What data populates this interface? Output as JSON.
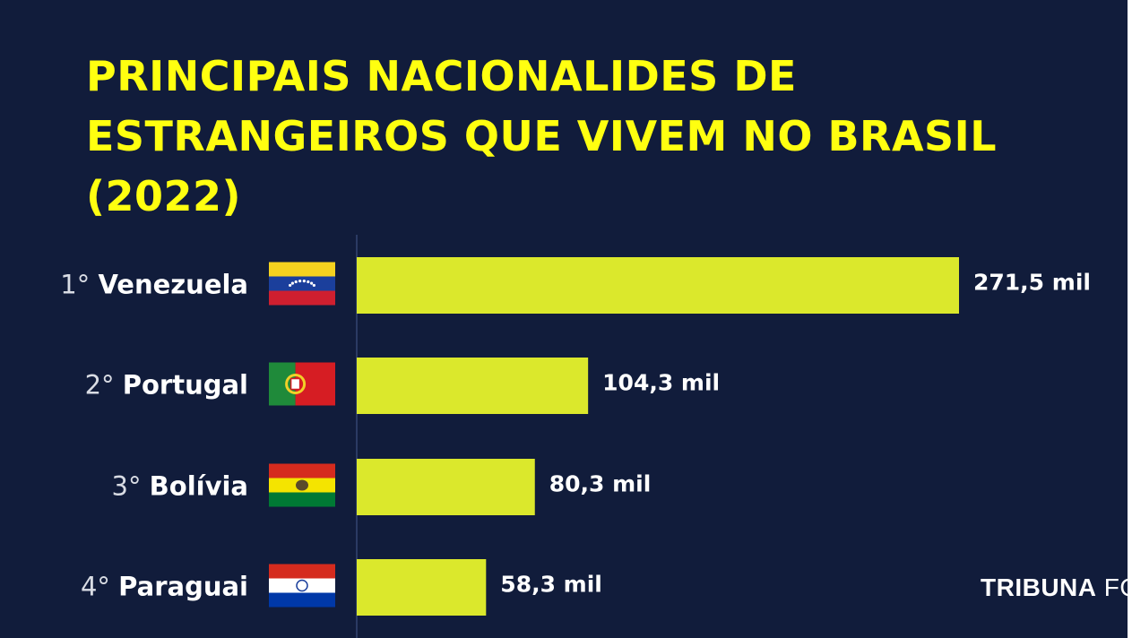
{
  "title_lines": [
    "PRINCIPAIS NACIONALIDES DE",
    "ESTRANGEIROS QUE VIVEM NO BRASIL",
    "(2022)"
  ],
  "brand": {
    "part1": "TRIBUNA",
    "part2": "FOZ"
  },
  "colors": {
    "background": "#111c3b",
    "bar": "#dbe82c",
    "title": "#ffff10",
    "text": "#ffffff",
    "axis": "#2b3a63"
  },
  "chart_data": {
    "type": "bar",
    "orientation": "horizontal",
    "title": "PRINCIPAIS NACIONALIDES DE ESTRANGEIROS QUE VIVEM NO BRASIL (2022)",
    "categories": [
      "Venezuela",
      "Portugal",
      "Bolívia",
      "Paraguai"
    ],
    "ranks": [
      "1°",
      "2°",
      "3°",
      "4°"
    ],
    "flag_icons": [
      "venezuela-flag-icon",
      "portugal-flag-icon",
      "bolivia-flag-icon",
      "paraguay-flag-icon"
    ],
    "values": [
      271.5,
      104.3,
      80.3,
      58.3
    ],
    "value_labels": [
      "271,5 mil",
      "104,3 mil",
      "80,3 mil",
      "58,3 mil"
    ],
    "xlim": [
      0,
      271.5
    ],
    "grid": false,
    "legend": "none"
  }
}
